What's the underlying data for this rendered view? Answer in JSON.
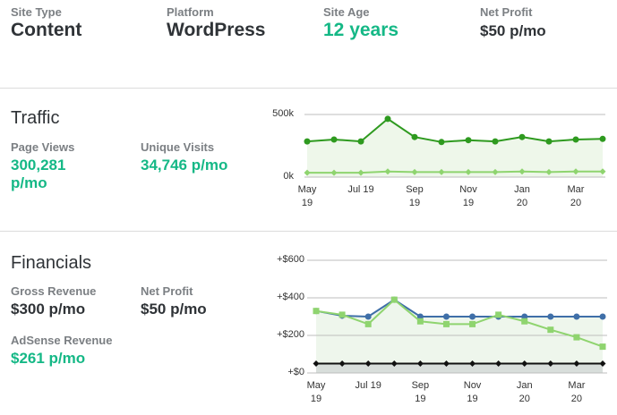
{
  "header": {
    "stats": [
      {
        "label": "Site Type",
        "value": "Content"
      },
      {
        "label": "Platform",
        "value": "WordPress"
      },
      {
        "label": "Site Age",
        "value": "12 years"
      },
      {
        "label": "Net Profit",
        "value": "$50 p/mo"
      }
    ]
  },
  "traffic": {
    "title": "Traffic",
    "stats": [
      {
        "label": "Page Views",
        "value": "300,281 p/mo"
      },
      {
        "label": "Unique Visits",
        "value": "34,746 p/mo"
      }
    ]
  },
  "financials": {
    "title": "Financials",
    "stats": [
      {
        "label": "Gross Revenue",
        "value": "$300 p/mo"
      },
      {
        "label": "Net Profit",
        "value": "$50 p/mo"
      },
      {
        "label": "AdSense Revenue",
        "value": "$261 p/mo"
      }
    ]
  },
  "chart_data": [
    {
      "type": "line",
      "categories": [
        "May 19",
        null,
        "Jul 19",
        null,
        "Sep 19",
        null,
        "Nov 19",
        null,
        "Jan 20",
        null,
        "Mar 20",
        null
      ],
      "ylim": [
        0,
        500000
      ],
      "yticks": [
        {
          "value": 0,
          "label": "0k"
        },
        {
          "value": 500000,
          "label": "500k"
        }
      ],
      "grid": true,
      "series": [
        {
          "color": "#2e9a1f",
          "marker": "circle",
          "area": "#eef7ea",
          "values": [
            285000,
            300000,
            285000,
            465000,
            320000,
            280000,
            295000,
            285000,
            320000,
            285000,
            300000,
            305000
          ]
        },
        {
          "color": "#8fd46f",
          "marker": "diamond",
          "values": [
            35000,
            35000,
            35000,
            45000,
            40000,
            40000,
            40000,
            40000,
            45000,
            40000,
            45000,
            45000
          ]
        }
      ]
    },
    {
      "type": "line",
      "categories": [
        "May 19",
        null,
        "Jul 19",
        null,
        "Sep 19",
        null,
        "Nov 19",
        null,
        "Jan 20",
        null,
        "Mar 20",
        null
      ],
      "ylim": [
        0,
        600
      ],
      "yticks": [
        {
          "value": 0,
          "label": "+$0"
        },
        {
          "value": 200,
          "label": "+$200"
        },
        {
          "value": 400,
          "label": "+$400"
        },
        {
          "value": 600,
          "label": "+$600"
        }
      ],
      "grid": true,
      "series": [
        {
          "color": "#3f6fa8",
          "marker": "circle",
          "area": "#eef6ec",
          "values": [
            330,
            305,
            300,
            390,
            300,
            300,
            300,
            300,
            300,
            300,
            300,
            300
          ]
        },
        {
          "color": "#8fd46f",
          "marker": "square",
          "values": [
            330,
            310,
            260,
            390,
            275,
            260,
            260,
            310,
            275,
            230,
            190,
            140
          ]
        },
        {
          "color": "#111111",
          "marker": "diamond",
          "area": "#d8dedb",
          "values": [
            50,
            50,
            50,
            50,
            50,
            50,
            50,
            50,
            50,
            50,
            50,
            50
          ]
        }
      ]
    }
  ]
}
